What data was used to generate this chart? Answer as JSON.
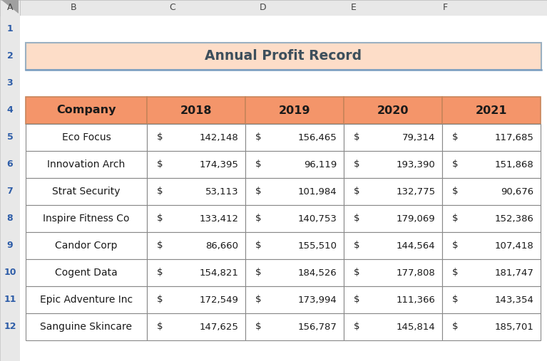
{
  "title": "Annual Profit Record",
  "title_bg": "#FDDDC8",
  "title_border": "#9BB0C1",
  "title_color": "#3D4F5C",
  "header_bg": "#F4956A",
  "header_border": "#C8855A",
  "header_text_color": "#1A1A1A",
  "cell_bg": "#FFFFFF",
  "cell_border": "#888888",
  "columns": [
    "Company",
    "2018",
    "2019",
    "2020",
    "2021"
  ],
  "rows": [
    [
      "Eco Focus",
      142148,
      156465,
      79314,
      117685
    ],
    [
      "Innovation Arch",
      174395,
      96119,
      193390,
      151868
    ],
    [
      "Strat Security",
      53113,
      101984,
      132775,
      90676
    ],
    [
      "Inspire Fitness Co",
      133412,
      140753,
      179069,
      152386
    ],
    [
      "Candor Corp",
      86660,
      155510,
      144564,
      107418
    ],
    [
      "Cogent Data",
      154821,
      184526,
      177808,
      181747
    ],
    [
      "Epic Adventure Inc",
      172549,
      173994,
      111366,
      143354
    ],
    [
      "Sanguine Skincare",
      147625,
      156787,
      145814,
      185701
    ]
  ],
  "excel_bg": "#F2F2F2",
  "cell_content_bg": "#FFFFFF",
  "row_num_color": "#2E5DA8",
  "col_letter_color": "#444444",
  "strip_bg": "#E8E8E8",
  "strip_border": "#C0C0C0",
  "fig_w": 7.67,
  "fig_h": 5.07,
  "dpi": 100
}
